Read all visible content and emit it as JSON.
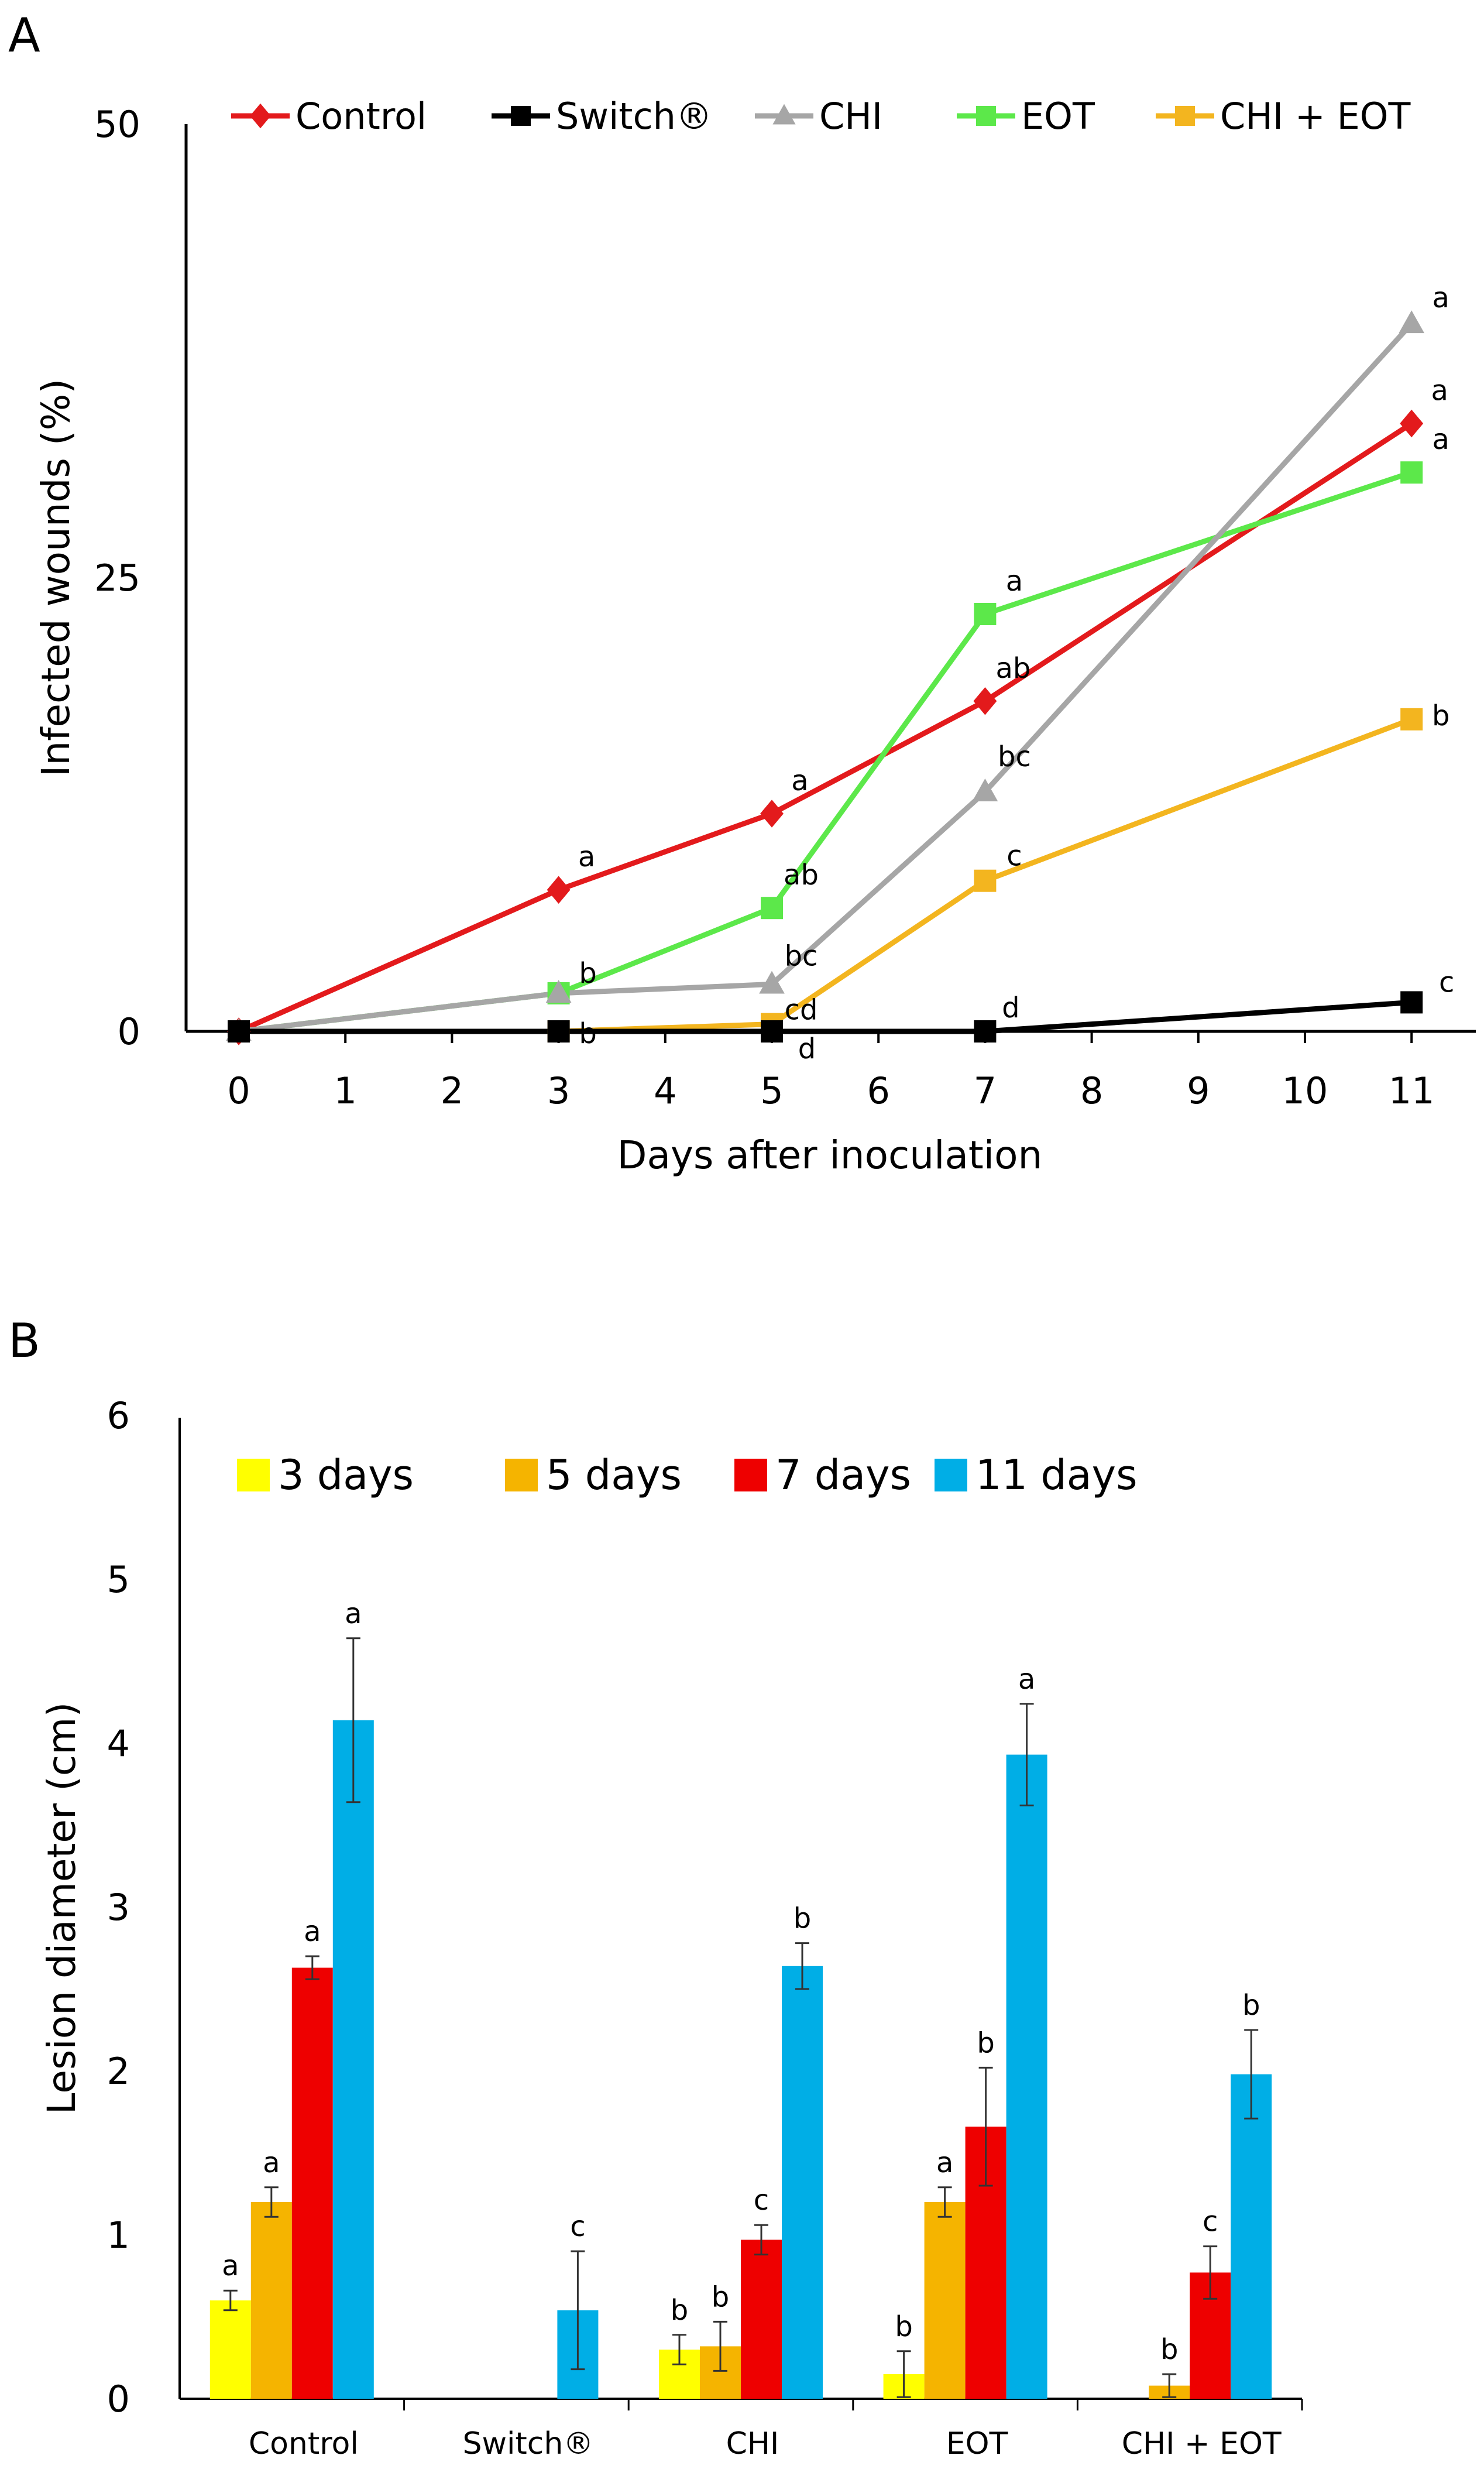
{
  "chart_data": [
    {
      "panel": "A",
      "type": "line",
      "title": "",
      "xlabel": "Days after inoculation",
      "ylabel": "Infected wounds (%)",
      "xlim": [
        -0.5,
        11.5
      ],
      "ylim": [
        0,
        50
      ],
      "x_ticks": [
        "0",
        "1",
        "2",
        "3",
        "4",
        "5",
        "6",
        "7",
        "8",
        "9",
        "10",
        "11"
      ],
      "y_ticks": [
        "0",
        "25",
        "50"
      ],
      "grid": false,
      "legend_position": "top",
      "series": [
        {
          "name": "Control",
          "color": "#e31a1c",
          "marker": "diamond",
          "x": [
            0,
            3,
            5,
            7,
            11
          ],
          "y": [
            0,
            7.8,
            12,
            18.2,
            33.5
          ],
          "labels": [
            "",
            "a",
            "a",
            "ab",
            "a"
          ]
        },
        {
          "name": "Switch®",
          "color": "#000000",
          "marker": "square",
          "x": [
            0,
            3,
            5,
            7,
            11
          ],
          "y": [
            0,
            0,
            0,
            0,
            1.6
          ],
          "labels": [
            "",
            "",
            "d",
            "d",
            "c"
          ]
        },
        {
          "name": "CHI",
          "color": "#a6a6a6",
          "marker": "triangle",
          "x": [
            0,
            3,
            5,
            7,
            11
          ],
          "y": [
            0,
            2.1,
            2.6,
            13.2,
            39
          ],
          "labels": [
            "",
            "",
            "bc",
            "bc",
            "a"
          ]
        },
        {
          "name": "EOT",
          "color": "#5ce84a",
          "marker": "square",
          "x": [
            0,
            3,
            5,
            7,
            11
          ],
          "y": [
            0,
            2.1,
            6.8,
            23,
            30.8
          ],
          "labels": [
            "",
            "b",
            "ab",
            "a",
            "a"
          ]
        },
        {
          "name": "CHI + EOT",
          "color": "#f3b51f",
          "marker": "square",
          "x": [
            0,
            3,
            5,
            7,
            11
          ],
          "y": [
            0,
            0,
            0.4,
            8.3,
            17.2
          ],
          "labels": [
            "",
            "b",
            "cd",
            "c",
            "b"
          ]
        }
      ]
    },
    {
      "panel": "B",
      "type": "bar",
      "title": "",
      "xlabel": "",
      "ylabel": "Lesion diameter (cm)",
      "ylim": [
        0,
        6
      ],
      "y_ticks": [
        "0",
        "1",
        "2",
        "3",
        "4",
        "5",
        "6"
      ],
      "grid": false,
      "legend_position": "top",
      "categories": [
        "Control",
        "Switch®",
        "CHI",
        "EOT",
        "CHI + EOT"
      ],
      "series": [
        {
          "name": "3 days",
          "color": "#ffff00",
          "values": [
            0.6,
            0,
            0.3,
            0.15,
            0
          ],
          "errors": [
            0.06,
            0,
            0.09,
            0.14,
            0
          ],
          "labels": [
            "a",
            "",
            "b",
            "b",
            ""
          ]
        },
        {
          "name": "5 days",
          "color": "#f5b400",
          "values": [
            1.2,
            0,
            0.32,
            1.2,
            0.08
          ],
          "errors": [
            0.09,
            0,
            0.15,
            0.09,
            0.07
          ],
          "labels": [
            "a",
            "",
            "b",
            "a",
            "b"
          ]
        },
        {
          "name": "7 days",
          "color": "#ee0000",
          "values": [
            2.63,
            0,
            0.97,
            1.66,
            0.77
          ],
          "errors": [
            0.07,
            0,
            0.09,
            0.36,
            0.16
          ],
          "labels": [
            "a",
            "",
            "c",
            "b",
            "c"
          ]
        },
        {
          "name": "11 days",
          "color": "#00aee6",
          "values": [
            4.14,
            0.54,
            2.64,
            3.93,
            1.98
          ],
          "errors": [
            0.5,
            0.36,
            0.14,
            0.31,
            0.27
          ],
          "labels": [
            "a",
            "c",
            "b",
            "a",
            "b"
          ]
        }
      ]
    }
  ],
  "panel_labels": [
    "A",
    "B"
  ]
}
